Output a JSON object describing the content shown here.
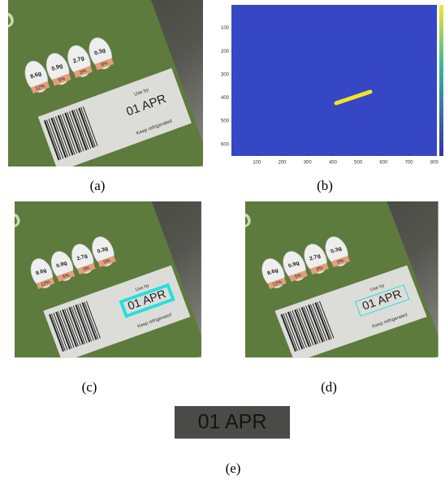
{
  "figure": {
    "photo_label": {
      "brand": "CO",
      "nutrients": [
        "8.6g",
        "0.9g",
        "2.7g",
        "0.3g"
      ],
      "percents": [
        "12%",
        "5%",
        "3%",
        "5%"
      ],
      "use_by": "Use by",
      "date": "01 APR",
      "storage": "Keep refrigerated"
    },
    "heatmap": {
      "xlim": [
        0,
        810
      ],
      "ylim": [
        0,
        650
      ],
      "xticks": [
        100,
        200,
        300,
        400,
        500,
        600,
        700,
        800
      ],
      "yticks": [
        100,
        200,
        300,
        400,
        500,
        600
      ]
    },
    "captions": [
      "(a)",
      "(b)",
      "(c)",
      "(d)",
      "(e)"
    ]
  }
}
